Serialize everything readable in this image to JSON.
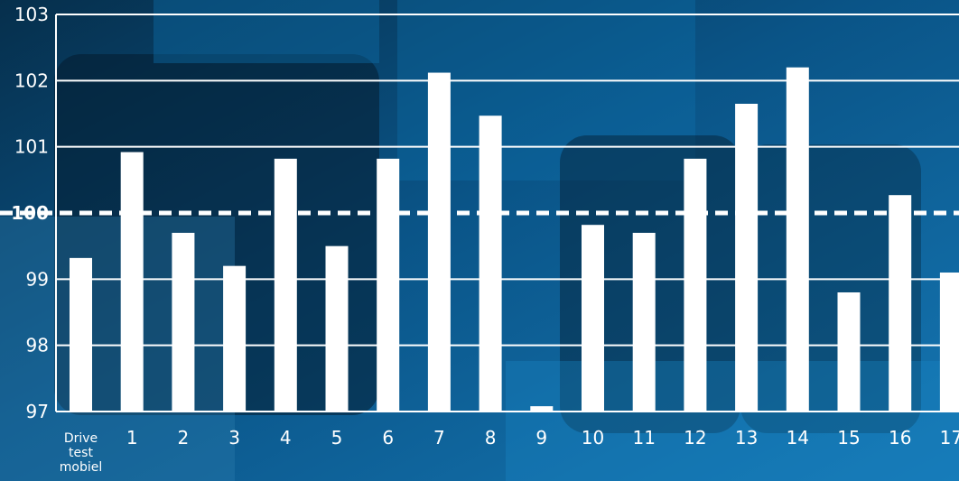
{
  "chart_data": {
    "type": "bar",
    "categories": [
      "Drive test mobiel",
      "1",
      "2",
      "3",
      "4",
      "5",
      "6",
      "7",
      "8",
      "9",
      "10",
      "11",
      "12",
      "13",
      "14",
      "15",
      "16",
      "17"
    ],
    "values": [
      99.32,
      100.92,
      99.7,
      99.2,
      100.82,
      99.5,
      100.82,
      102.12,
      101.47,
      97.08,
      99.82,
      99.7,
      100.82,
      101.65,
      102.2,
      98.8,
      100.27,
      99.1
    ],
    "title": "",
    "xlabel": "",
    "ylabel": "",
    "ylim": [
      97,
      103
    ],
    "yticks": [
      "97",
      "98",
      "99",
      "100",
      "101",
      "102",
      "103"
    ],
    "reference_line": {
      "value": 100,
      "style": "dashed"
    },
    "grid": true
  },
  "colors": {
    "bar": "#ffffff",
    "grid": "#ffffff",
    "text": "#ffffff",
    "background": "#0b5f93"
  }
}
